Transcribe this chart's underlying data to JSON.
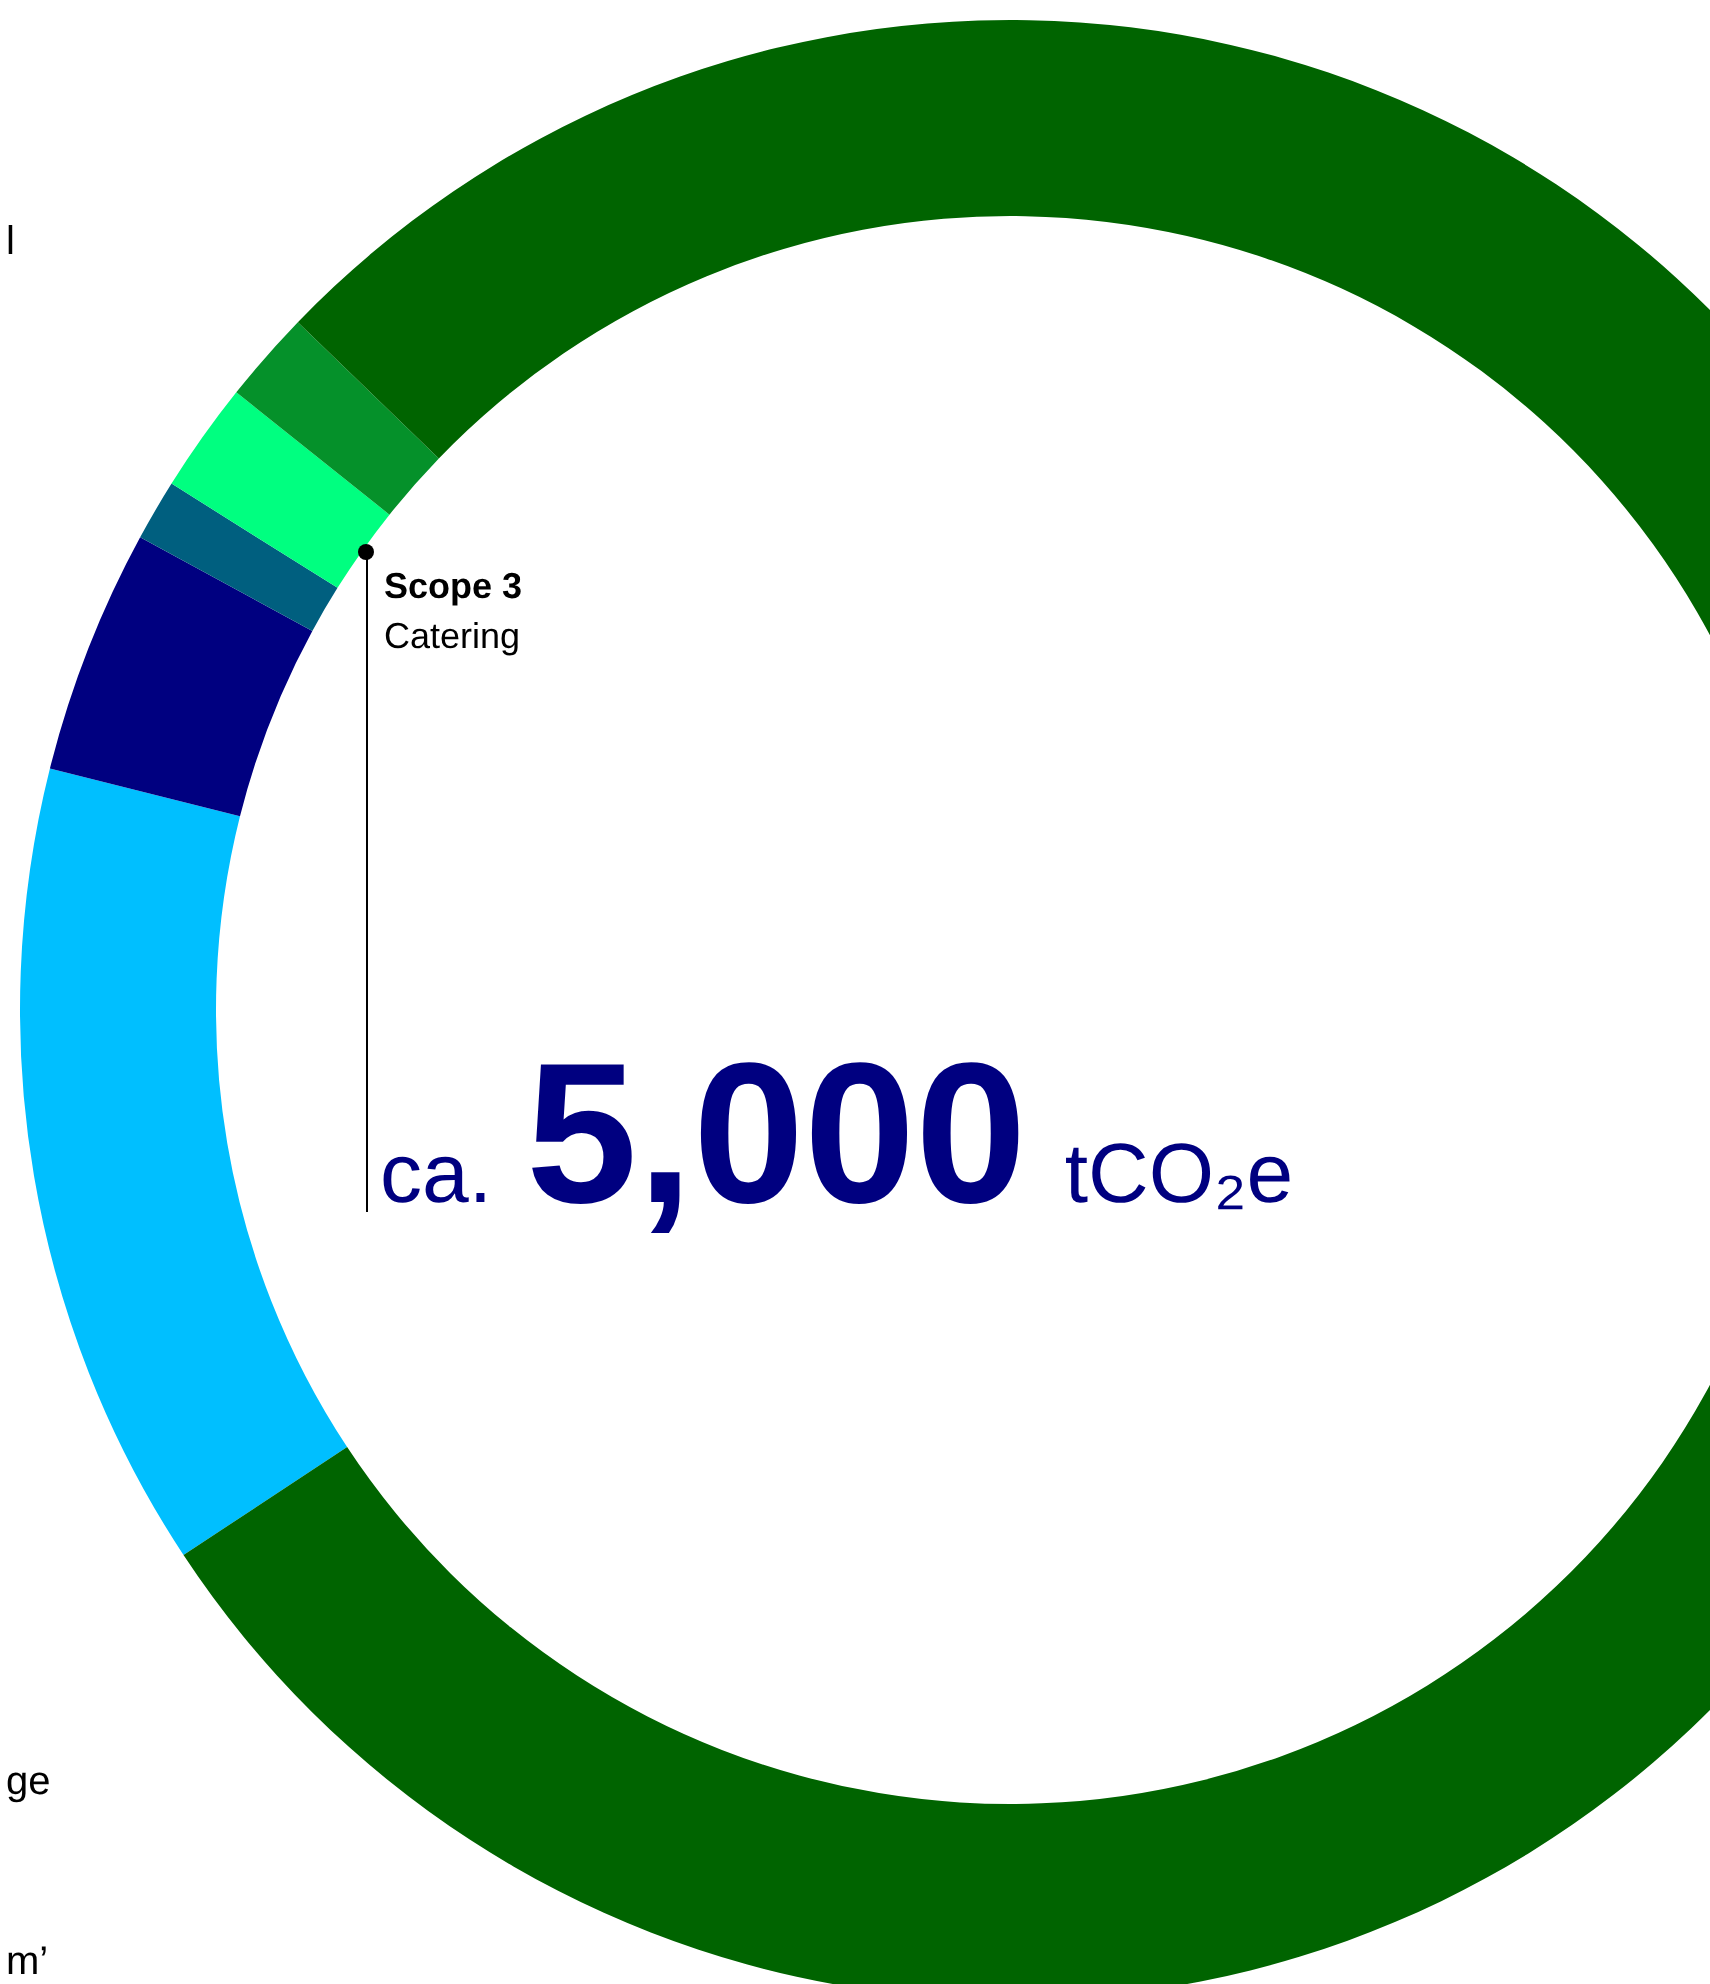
{
  "chart_data": {
    "type": "donut",
    "categories": [
      null,
      null,
      null,
      "Catering",
      null,
      null
    ],
    "values": [
      13.2,
      4.0,
      1.0,
      1.8,
      1.5,
      78.5
    ],
    "colors": [
      "#00bfff",
      "#000080",
      "#005f7f",
      "#00ff80",
      "#05912a",
      "#006400"
    ],
    "legend": false,
    "annotations": [
      "Scope 3",
      "ca. 5,000 tCO₂e",
      "l",
      "ge",
      "m’"
    ]
  }
}
